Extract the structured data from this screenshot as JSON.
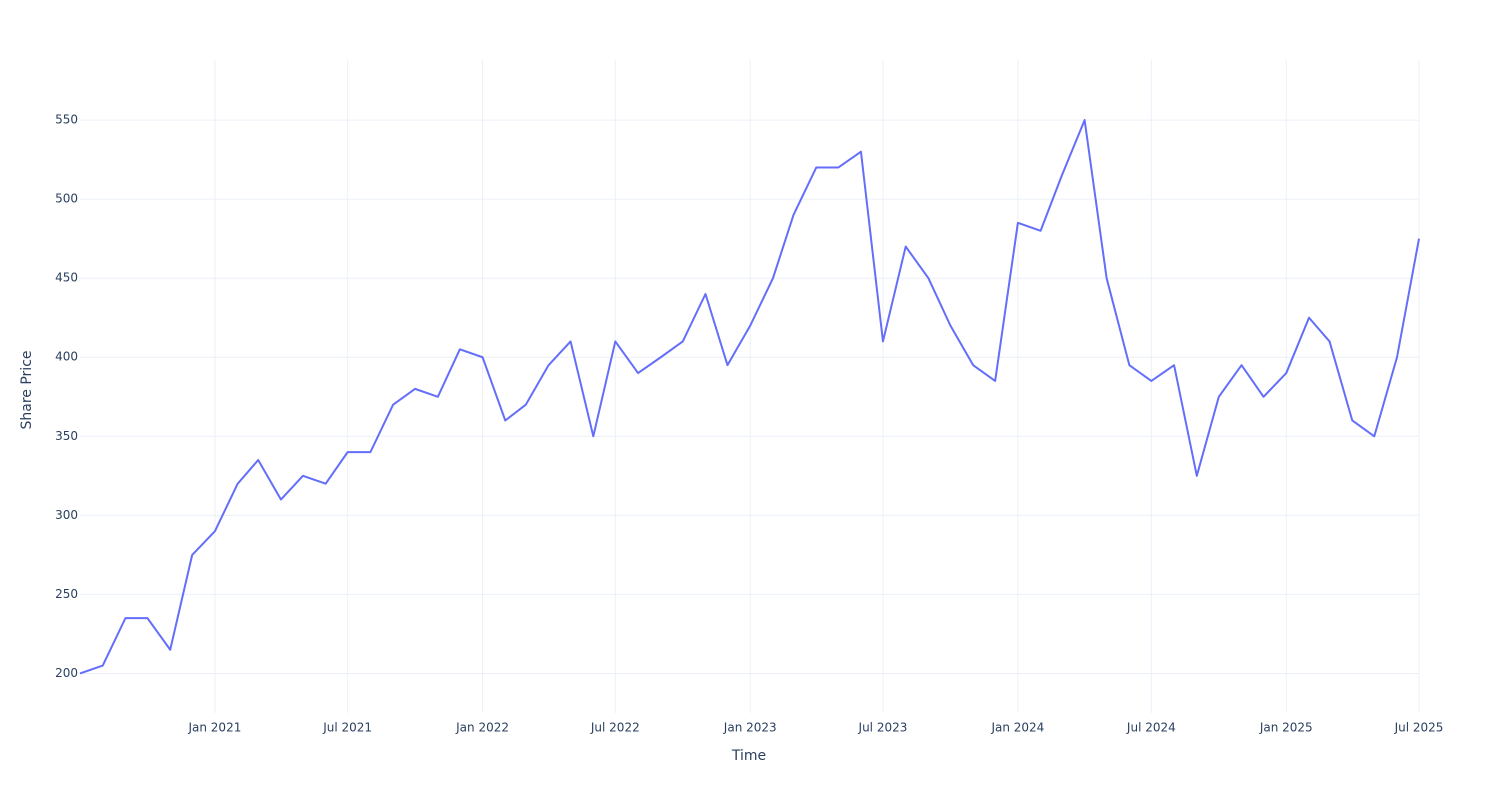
{
  "chart_data": {
    "type": "line",
    "x_label": "Time",
    "y_label": "Share Price",
    "x": [
      "2020-07",
      "2020-08",
      "2020-09",
      "2020-10",
      "2020-11",
      "2020-12",
      "2021-01",
      "2021-02",
      "2021-03",
      "2021-04",
      "2021-05",
      "2021-06",
      "2021-07",
      "2021-08",
      "2021-09",
      "2021-10",
      "2021-11",
      "2021-12",
      "2022-01",
      "2022-02",
      "2022-03",
      "2022-04",
      "2022-05",
      "2022-06",
      "2022-07",
      "2022-08",
      "2022-09",
      "2022-10",
      "2022-11",
      "2022-12",
      "2023-01",
      "2023-02",
      "2023-03",
      "2023-04",
      "2023-05",
      "2023-06",
      "2023-07",
      "2023-08",
      "2023-09",
      "2023-10",
      "2023-11",
      "2023-12",
      "2024-01",
      "2024-02",
      "2024-03",
      "2024-04",
      "2024-05",
      "2024-06",
      "2024-07",
      "2024-08",
      "2024-09",
      "2024-10",
      "2024-11",
      "2024-12",
      "2025-01",
      "2025-02",
      "2025-03",
      "2025-04",
      "2025-05",
      "2025-06",
      "2025-07"
    ],
    "series": [
      {
        "name": "Share Price",
        "color": "#636efa",
        "values": [
          200,
          205,
          235,
          235,
          215,
          275,
          290,
          320,
          335,
          310,
          325,
          320,
          340,
          340,
          370,
          380,
          375,
          405,
          400,
          360,
          370,
          395,
          410,
          350,
          410,
          390,
          400,
          410,
          440,
          395,
          420,
          450,
          490,
          520,
          520,
          530,
          410,
          470,
          450,
          420,
          395,
          385,
          485,
          480,
          515,
          550,
          450,
          395,
          385,
          395,
          325,
          375,
          395,
          375,
          390,
          425,
          410,
          360,
          350,
          400,
          475
        ]
      }
    ],
    "xlim": [
      "2020-07",
      "2025-07"
    ],
    "xticks": [
      {
        "value": "2021-01",
        "label": "Jan 2021"
      },
      {
        "value": "2021-07",
        "label": "Jul 2021"
      },
      {
        "value": "2022-01",
        "label": "Jan 2022"
      },
      {
        "value": "2022-07",
        "label": "Jul 2022"
      },
      {
        "value": "2023-01",
        "label": "Jan 2023"
      },
      {
        "value": "2023-07",
        "label": "Jul 2023"
      },
      {
        "value": "2024-01",
        "label": "Jan 2024"
      },
      {
        "value": "2024-07",
        "label": "Jul 2024"
      },
      {
        "value": "2025-01",
        "label": "Jan 2025"
      },
      {
        "value": "2025-07",
        "label": "Jul 2025"
      }
    ],
    "ylim": [
      175,
      588
    ],
    "yticks": [
      200,
      250,
      300,
      350,
      400,
      450,
      500,
      550
    ],
    "grid": true
  }
}
